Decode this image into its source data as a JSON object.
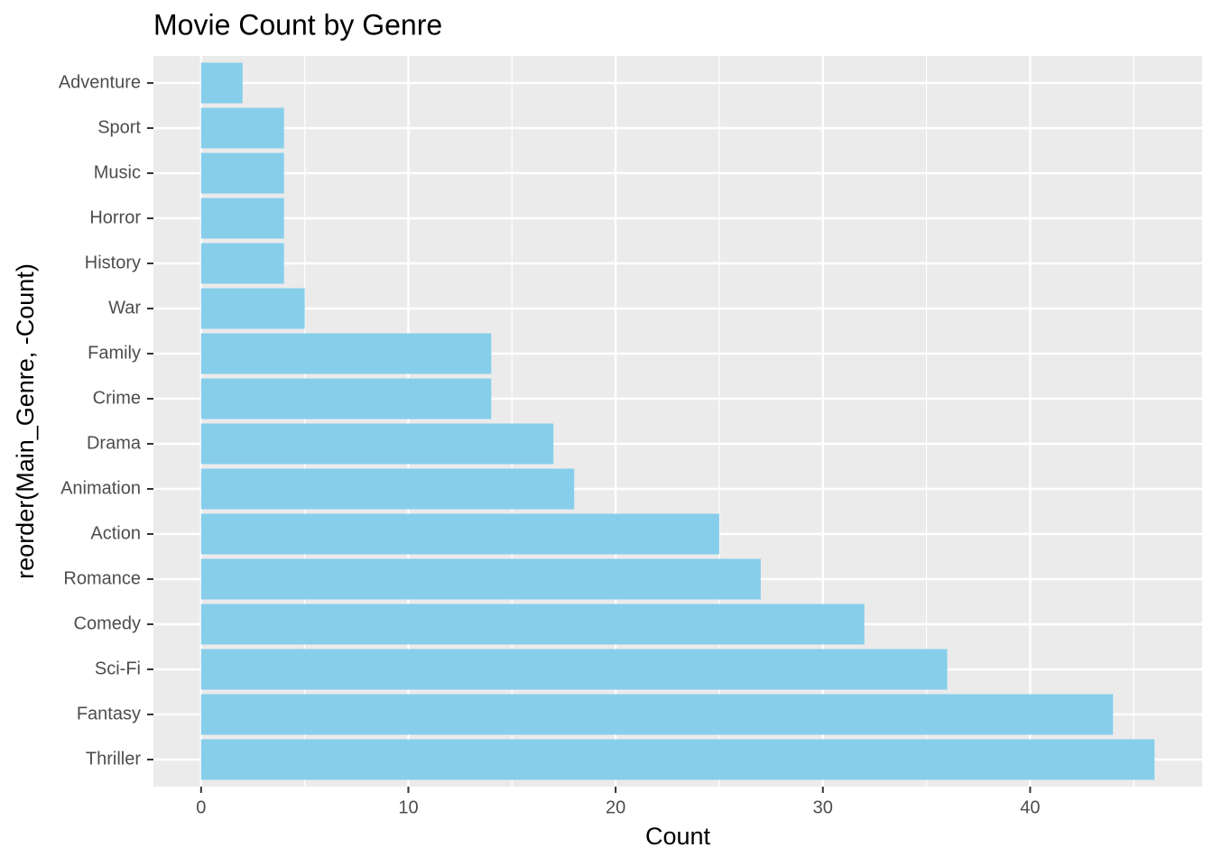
{
  "chart_data": {
    "type": "bar",
    "orientation": "horizontal",
    "title": "Movie Count by Genre",
    "x_label": "Count",
    "y_label": "reorder(Main_Genre, -Count)",
    "categories": [
      "Adventure",
      "Sport",
      "Music",
      "Horror",
      "History",
      "War",
      "Family",
      "Crime",
      "Drama",
      "Animation",
      "Action",
      "Romance",
      "Comedy",
      "Sci-Fi",
      "Fantasy",
      "Thriller"
    ],
    "values": [
      2,
      4,
      4,
      4,
      4,
      5,
      14,
      14,
      17,
      18,
      25,
      27,
      32,
      36,
      44,
      46
    ],
    "color": "#87ceeb",
    "xlim": [
      -2.3,
      48.3
    ],
    "xticks": [
      0,
      10,
      20,
      30,
      40
    ],
    "minor_xticks": [
      5,
      15,
      25,
      35,
      45
    ],
    "grid": true
  }
}
